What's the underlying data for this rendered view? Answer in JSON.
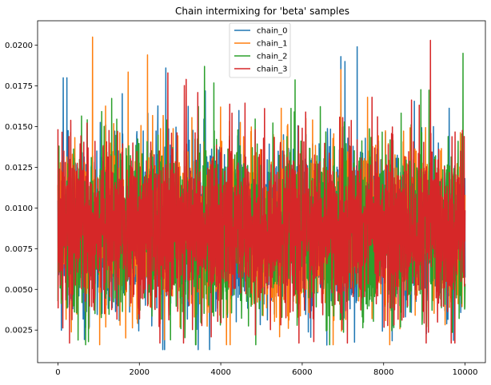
{
  "chart_data": {
    "type": "line",
    "title": "Chain intermixing for 'beta' samples",
    "xlabel": "",
    "ylabel": "",
    "xlim": [
      -500,
      10500
    ],
    "ylim": [
      0.0005,
      0.0215
    ],
    "xticks": [
      0,
      2000,
      4000,
      6000,
      8000,
      10000
    ],
    "xtick_labels": [
      "0",
      "2000",
      "4000",
      "6000",
      "8000",
      "10000"
    ],
    "yticks": [
      0.0025,
      0.005,
      0.0075,
      0.01,
      0.0125,
      0.015,
      0.0175,
      0.02
    ],
    "ytick_labels": [
      "0.0025",
      "0.0050",
      "0.0075",
      "0.0100",
      "0.0125",
      "0.0150",
      "0.0175",
      "0.0200"
    ],
    "grid": false,
    "legend_position": "top-center",
    "series": [
      {
        "name": "chain_0",
        "color": "#1f77b4",
        "x_range": [
          0,
          10000
        ],
        "n_samples": 10000,
        "mean": 0.0087,
        "std": 0.0026,
        "min": 0.0013,
        "max": 0.0199,
        "notable_peaks": [
          [
            130,
            0.018
          ],
          [
            220,
            0.018
          ],
          [
            2650,
            0.0186
          ],
          [
            6950,
            0.0193
          ],
          [
            7050,
            0.019
          ],
          [
            7350,
            0.0199
          ]
        ]
      },
      {
        "name": "chain_1",
        "color": "#ff7f0e",
        "x_range": [
          0,
          10000
        ],
        "n_samples": 10000,
        "mean": 0.0087,
        "std": 0.0026,
        "min": 0.0016,
        "max": 0.0205,
        "notable_peaks": [
          [
            850,
            0.0205
          ],
          [
            2200,
            0.0194
          ],
          [
            6950,
            0.0185
          ]
        ]
      },
      {
        "name": "chain_2",
        "color": "#2ca02c",
        "x_range": [
          0,
          10000
        ],
        "n_samples": 10000,
        "mean": 0.0087,
        "std": 0.0026,
        "min": 0.0016,
        "max": 0.0195,
        "notable_peaks": [
          [
            3600,
            0.0187
          ],
          [
            9950,
            0.0195
          ]
        ]
      },
      {
        "name": "chain_3",
        "color": "#d62728",
        "x_range": [
          0,
          10000
        ],
        "n_samples": 10000,
        "mean": 0.0087,
        "std": 0.0026,
        "min": 0.0017,
        "max": 0.0203,
        "notable_peaks": [
          [
            2700,
            0.0183
          ],
          [
            3150,
            0.0179
          ],
          [
            9150,
            0.0203
          ]
        ]
      }
    ]
  }
}
